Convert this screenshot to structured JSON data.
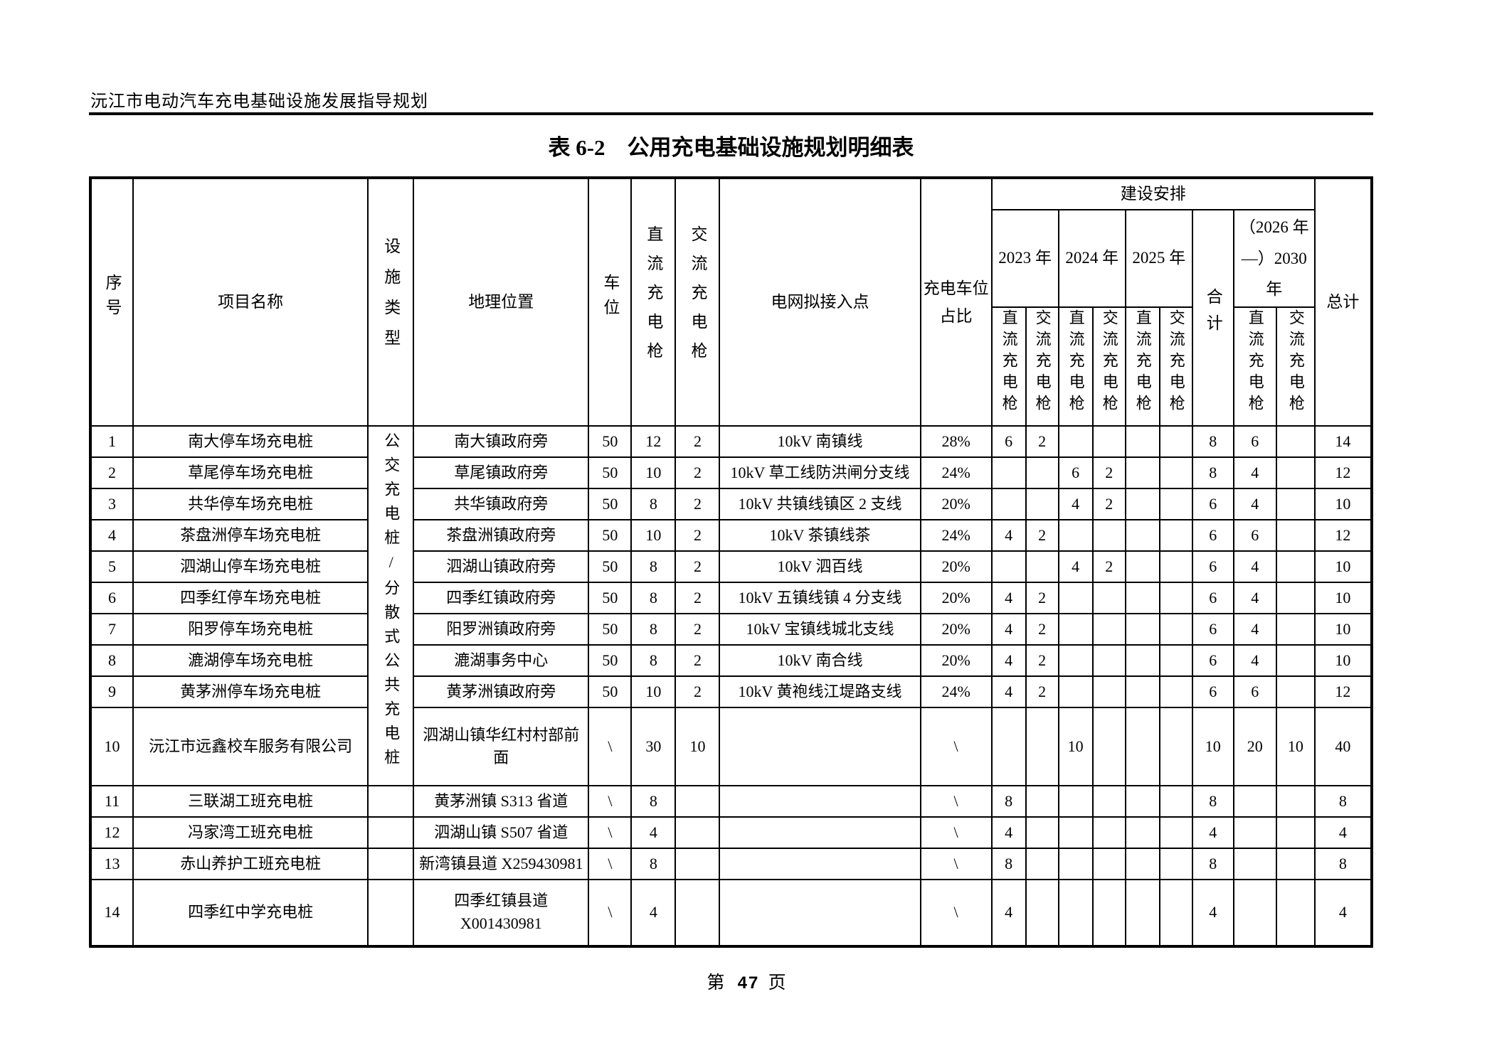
{
  "colors": {
    "text": "#000000",
    "background": "#ffffff",
    "border": "#000000"
  },
  "doc_header": "沅江市电动汽车充电基础设施发展指导规划",
  "table_title": "表 6-2　公用充电基础设施规划明细表",
  "footer": {
    "prefix": "第",
    "page": "47",
    "suffix": "页"
  },
  "table": {
    "header": {
      "no": "序号",
      "project": "项目名称",
      "facility": "设施类型",
      "location": "地理位置",
      "spots": "车位",
      "dc": "直流充电枪",
      "ac": "交流充电枪",
      "grid": "电网拟接入点",
      "ratio": "充电车位占比",
      "schedule": "建设安排",
      "y2023": "2023 年",
      "y2024": "2024 年",
      "y2025": "2025 年",
      "subtotal": "合计",
      "y2030": "（2026 年—）2030 年",
      "total": "总计",
      "dc_sub": "直流充电枪",
      "ac_sub": "交流充电枪"
    },
    "facility_type": {
      "text": "公交充电桩/分散式公共充电桩",
      "span_rows": 10
    },
    "rows": [
      {
        "no": "1",
        "name": "南大停车场充电桩",
        "location": "南大镇政府旁",
        "spots": "50",
        "dc": "12",
        "ac": "2",
        "grid": "10kV 南镇线",
        "ratio": "28%",
        "y2023_dc": "6",
        "y2023_ac": "2",
        "y2024_dc": "",
        "y2024_ac": "",
        "y2025_dc": "",
        "y2025_ac": "",
        "subtotal": "8",
        "y2030_dc": "6",
        "y2030_ac": "",
        "total": "14"
      },
      {
        "no": "2",
        "name": "草尾停车场充电桩",
        "location": "草尾镇政府旁",
        "spots": "50",
        "dc": "10",
        "ac": "2",
        "grid": "10kV 草工线防洪闸分支线",
        "ratio": "24%",
        "y2023_dc": "",
        "y2023_ac": "",
        "y2024_dc": "6",
        "y2024_ac": "2",
        "y2025_dc": "",
        "y2025_ac": "",
        "subtotal": "8",
        "y2030_dc": "4",
        "y2030_ac": "",
        "total": "12"
      },
      {
        "no": "3",
        "name": "共华停车场充电桩",
        "location": "共华镇政府旁",
        "spots": "50",
        "dc": "8",
        "ac": "2",
        "grid": "10kV 共镇线镇区 2 支线",
        "ratio": "20%",
        "y2023_dc": "",
        "y2023_ac": "",
        "y2024_dc": "4",
        "y2024_ac": "2",
        "y2025_dc": "",
        "y2025_ac": "",
        "subtotal": "6",
        "y2030_dc": "4",
        "y2030_ac": "",
        "total": "10"
      },
      {
        "no": "4",
        "name": "茶盘洲停车场充电桩",
        "location": "茶盘洲镇政府旁",
        "spots": "50",
        "dc": "10",
        "ac": "2",
        "grid": "10kV 茶镇线茶",
        "ratio": "24%",
        "y2023_dc": "4",
        "y2023_ac": "2",
        "y2024_dc": "",
        "y2024_ac": "",
        "y2025_dc": "",
        "y2025_ac": "",
        "subtotal": "6",
        "y2030_dc": "6",
        "y2030_ac": "",
        "total": "12"
      },
      {
        "no": "5",
        "name": "泗湖山停车场充电桩",
        "location": "泗湖山镇政府旁",
        "spots": "50",
        "dc": "8",
        "ac": "2",
        "grid": "10kV 泗百线",
        "ratio": "20%",
        "y2023_dc": "",
        "y2023_ac": "",
        "y2024_dc": "4",
        "y2024_ac": "2",
        "y2025_dc": "",
        "y2025_ac": "",
        "subtotal": "6",
        "y2030_dc": "4",
        "y2030_ac": "",
        "total": "10"
      },
      {
        "no": "6",
        "name": "四季红停车场充电桩",
        "location": "四季红镇政府旁",
        "spots": "50",
        "dc": "8",
        "ac": "2",
        "grid": "10kV 五镇线镇 4 分支线",
        "ratio": "20%",
        "y2023_dc": "4",
        "y2023_ac": "2",
        "y2024_dc": "",
        "y2024_ac": "",
        "y2025_dc": "",
        "y2025_ac": "",
        "subtotal": "6",
        "y2030_dc": "4",
        "y2030_ac": "",
        "total": "10"
      },
      {
        "no": "7",
        "name": "阳罗停车场充电桩",
        "location": "阳罗洲镇政府旁",
        "spots": "50",
        "dc": "8",
        "ac": "2",
        "grid": "10kV 宝镇线城北支线",
        "ratio": "20%",
        "y2023_dc": "4",
        "y2023_ac": "2",
        "y2024_dc": "",
        "y2024_ac": "",
        "y2025_dc": "",
        "y2025_ac": "",
        "subtotal": "6",
        "y2030_dc": "4",
        "y2030_ac": "",
        "total": "10"
      },
      {
        "no": "8",
        "name": "漉湖停车场充电桩",
        "location": "漉湖事务中心",
        "spots": "50",
        "dc": "8",
        "ac": "2",
        "grid": "10kV 南合线",
        "ratio": "20%",
        "y2023_dc": "4",
        "y2023_ac": "2",
        "y2024_dc": "",
        "y2024_ac": "",
        "y2025_dc": "",
        "y2025_ac": "",
        "subtotal": "6",
        "y2030_dc": "4",
        "y2030_ac": "",
        "total": "10"
      },
      {
        "no": "9",
        "name": "黄茅洲停车场充电桩",
        "location": "黄茅洲镇政府旁",
        "spots": "50",
        "dc": "10",
        "ac": "2",
        "grid": "10kV 黄袍线江堤路支线",
        "ratio": "24%",
        "y2023_dc": "4",
        "y2023_ac": "2",
        "y2024_dc": "",
        "y2024_ac": "",
        "y2025_dc": "",
        "y2025_ac": "",
        "subtotal": "6",
        "y2030_dc": "6",
        "y2030_ac": "",
        "total": "12"
      },
      {
        "no": "10",
        "name": "沅江市远鑫校车服务有限公司",
        "location": "泗湖山镇华红村村部前面",
        "spots": "\\",
        "dc": "30",
        "ac": "10",
        "grid": "",
        "ratio": "\\",
        "y2023_dc": "",
        "y2023_ac": "",
        "y2024_dc": "10",
        "y2024_ac": "",
        "y2025_dc": "",
        "y2025_ac": "",
        "subtotal": "10",
        "y2030_dc": "20",
        "y2030_ac": "10",
        "total": "40"
      },
      {
        "no": "11",
        "name": "三联湖工班充电桩",
        "location": "黄茅洲镇 S313 省道",
        "spots": "\\",
        "dc": "8",
        "ac": "",
        "grid": "",
        "ratio": "\\",
        "y2023_dc": "8",
        "y2023_ac": "",
        "y2024_dc": "",
        "y2024_ac": "",
        "y2025_dc": "",
        "y2025_ac": "",
        "subtotal": "8",
        "y2030_dc": "",
        "y2030_ac": "",
        "total": "8"
      },
      {
        "no": "12",
        "name": "冯家湾工班充电桩",
        "location": "泗湖山镇 S507 省道",
        "spots": "\\",
        "dc": "4",
        "ac": "",
        "grid": "",
        "ratio": "\\",
        "y2023_dc": "4",
        "y2023_ac": "",
        "y2024_dc": "",
        "y2024_ac": "",
        "y2025_dc": "",
        "y2025_ac": "",
        "subtotal": "4",
        "y2030_dc": "",
        "y2030_ac": "",
        "total": "4"
      },
      {
        "no": "13",
        "name": "赤山养护工班充电桩",
        "location": "新湾镇县道 X259430981",
        "spots": "\\",
        "dc": "8",
        "ac": "",
        "grid": "",
        "ratio": "\\",
        "y2023_dc": "8",
        "y2023_ac": "",
        "y2024_dc": "",
        "y2024_ac": "",
        "y2025_dc": "",
        "y2025_ac": "",
        "subtotal": "8",
        "y2030_dc": "",
        "y2030_ac": "",
        "total": "8"
      },
      {
        "no": "14",
        "name": "四季红中学充电桩",
        "location": "四季红镇县道 X001430981",
        "spots": "\\",
        "dc": "4",
        "ac": "",
        "grid": "",
        "ratio": "\\",
        "y2023_dc": "4",
        "y2023_ac": "",
        "y2024_dc": "",
        "y2024_ac": "",
        "y2025_dc": "",
        "y2025_ac": "",
        "subtotal": "4",
        "y2030_dc": "",
        "y2030_ac": "",
        "total": "4"
      }
    ]
  }
}
